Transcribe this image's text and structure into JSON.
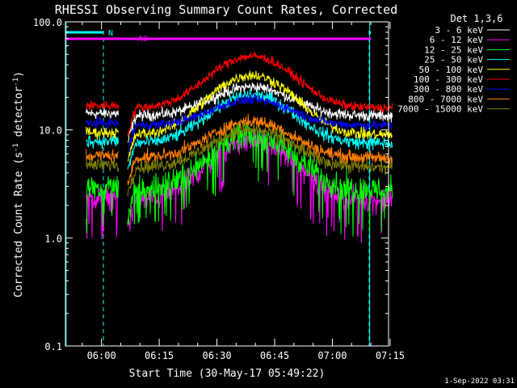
{
  "chart_data": {
    "type": "line",
    "title": "RHESSI Observing Summary Count Rates, Corrected",
    "xlabel": "Start Time (30-May-17 05:49:22)",
    "ylabel_main": "Corrected Count Rate (s",
    "ylabel_sup1": "-1",
    "ylabel_mid": " detector",
    "ylabel_sup2": "-1",
    "ylabel_end": ")",
    "ylog": true,
    "ylim": [
      0.1,
      100
    ],
    "xlim_minutes": [
      -9.37,
      74.6
    ],
    "yticks": [
      {
        "value": 0.1,
        "label": "0.1"
      },
      {
        "value": 1,
        "label": "1.0"
      },
      {
        "value": 10,
        "label": "10.0"
      },
      {
        "value": 100,
        "label": "100.0"
      }
    ],
    "xticks": [
      {
        "minutes": 0,
        "label": "06:00"
      },
      {
        "minutes": 15,
        "label": "06:15"
      },
      {
        "minutes": 30,
        "label": "06:30"
      },
      {
        "minutes": 45,
        "label": "06:45"
      },
      {
        "minutes": 60,
        "label": "07:00"
      },
      {
        "minutes": 75,
        "label": "07:15"
      }
    ],
    "legend_title": "Det 1,3,6",
    "legend_position": "top-right",
    "series": [
      {
        "name": "3 - 6 keV",
        "color": "#ffffff",
        "base": 13.5,
        "peak": 25,
        "noise": 0.06
      },
      {
        "name": "6 - 12 keV",
        "color": "#ff00ff",
        "base": 2.2,
        "peak": 8,
        "noise": 0.12
      },
      {
        "name": "12 - 25 keV",
        "color": "#00ff00",
        "base": 2.8,
        "peak": 9,
        "noise": 0.14
      },
      {
        "name": "25 - 50 keV",
        "color": "#00ffff",
        "base": 7.5,
        "peak": 21,
        "noise": 0.07
      },
      {
        "name": "50 - 100 keV",
        "color": "#ffff00",
        "base": 9.0,
        "peak": 32,
        "noise": 0.06
      },
      {
        "name": "100 - 300 keV",
        "color": "#ff0000",
        "base": 16,
        "peak": 48,
        "noise": 0.05
      },
      {
        "name": "300 - 800 keV",
        "color": "#0000ff",
        "base": 11,
        "peak": 19,
        "noise": 0.05
      },
      {
        "name": "800 - 7000 keV",
        "color": "#ff8000",
        "base": 5.5,
        "peak": 12,
        "noise": 0.07
      },
      {
        "name": "7000 - 15000 keV",
        "color": "#808000",
        "base": 4.5,
        "peak": 10,
        "noise": 0.07
      }
    ],
    "flags": [
      {
        "label": "N",
        "color": "#00ffff"
      },
      {
        "label": "A0",
        "color": "#ff00ff"
      }
    ],
    "timestamp": "1-Sep-2022 03:31"
  }
}
